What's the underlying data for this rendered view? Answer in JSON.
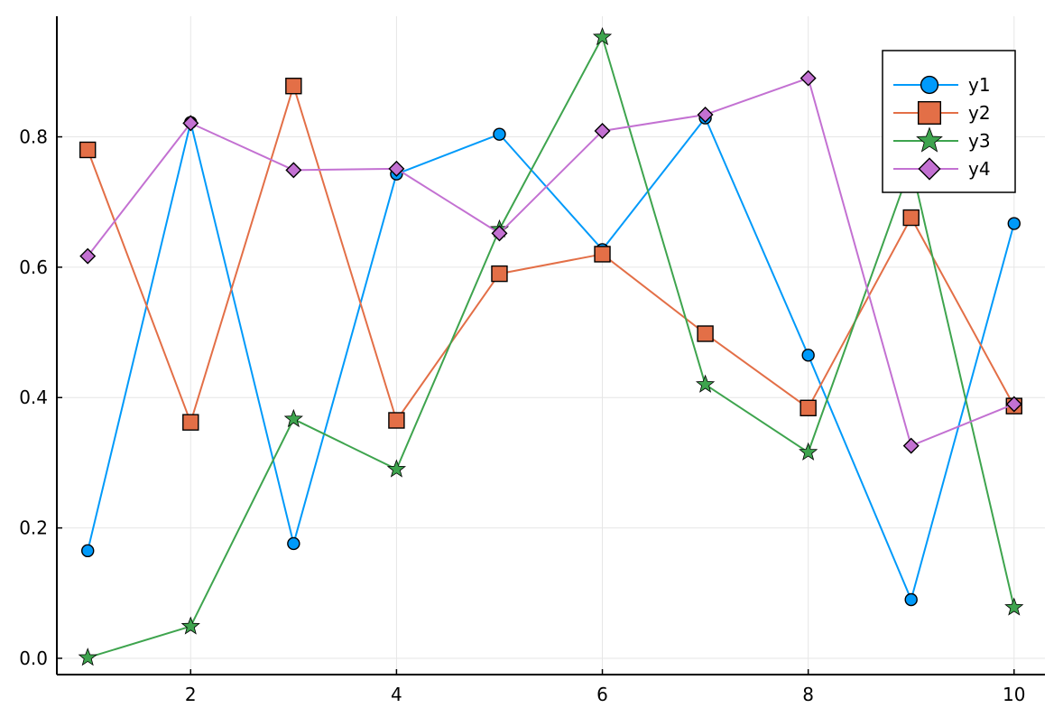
{
  "chart_data": {
    "type": "line",
    "title": "",
    "xlabel": "",
    "ylabel": "",
    "x": [
      1,
      2,
      3,
      4,
      5,
      6,
      7,
      8,
      9,
      10
    ],
    "xlim": [
      0.7,
      10.3
    ],
    "ylim": [
      -0.025,
      0.985
    ],
    "xticks": [
      2,
      4,
      6,
      8,
      10
    ],
    "yticks": [
      0.0,
      0.2,
      0.4,
      0.6,
      0.8
    ],
    "xtick_labels": [
      "2",
      "4",
      "6",
      "8",
      "10"
    ],
    "ytick_labels": [
      "0.0",
      "0.2",
      "0.4",
      "0.6",
      "0.8"
    ],
    "grid": true,
    "legend_position": "top-right",
    "series": [
      {
        "name": "y1",
        "marker": "circle",
        "color": "#009AFA",
        "values": [
          0.165,
          0.822,
          0.176,
          0.743,
          0.804,
          0.627,
          0.829,
          0.465,
          0.09,
          0.667
        ]
      },
      {
        "name": "y2",
        "marker": "square",
        "color": "#E36F47",
        "values": [
          0.78,
          0.362,
          0.878,
          0.365,
          0.59,
          0.62,
          0.498,
          0.384,
          0.676,
          0.387
        ]
      },
      {
        "name": "y3",
        "marker": "star",
        "color": "#3EA44E",
        "values": [
          0.001,
          0.049,
          0.367,
          0.29,
          0.658,
          0.953,
          0.42,
          0.316,
          0.757,
          0.078
        ]
      },
      {
        "name": "y4",
        "marker": "diamond",
        "color": "#C371D2",
        "values": [
          0.617,
          0.821,
          0.749,
          0.751,
          0.652,
          0.809,
          0.834,
          0.89,
          0.326,
          0.39
        ]
      }
    ]
  }
}
